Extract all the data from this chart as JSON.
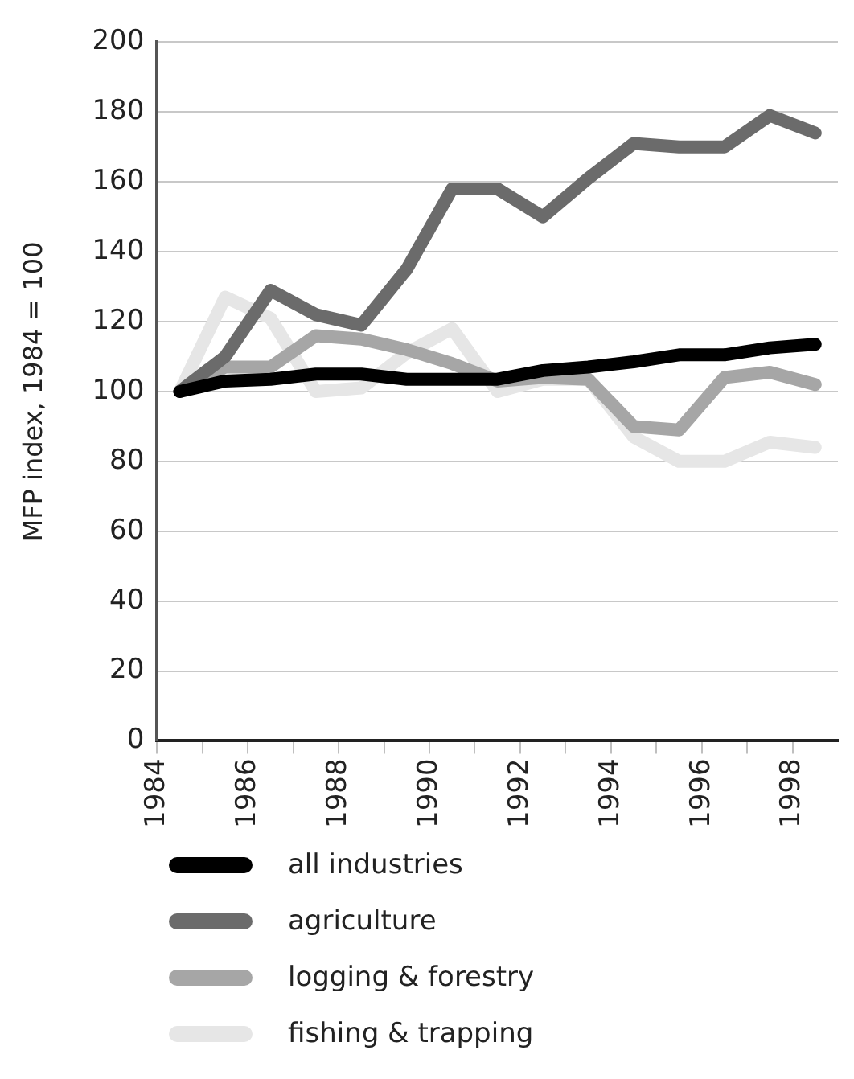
{
  "chart_data": {
    "type": "line",
    "ylabel": "MFP index, 1984 = 100",
    "x": [
      1984.5,
      1985.5,
      1986.5,
      1987.5,
      1988.5,
      1989.5,
      1990.5,
      1991.5,
      1992.5,
      1993.5,
      1994.5,
      1995.5,
      1996.5,
      1997.5,
      1998.5
    ],
    "series": [
      {
        "name": "all industries",
        "color": "#000000",
        "values": [
          100,
          103,
          103.5,
          105,
          105,
          103.5,
          103.5,
          103.5,
          106,
          107,
          108.5,
          110.5,
          110.5,
          112.5,
          113.5
        ]
      },
      {
        "name": "agriculture",
        "color": "#6b6b6b",
        "values": [
          100,
          110,
          129,
          122,
          119,
          135,
          158,
          158,
          150,
          161,
          171,
          170,
          170,
          179,
          174
        ]
      },
      {
        "name": "logging & forestry",
        "color": "#a6a6a6",
        "values": [
          100,
          107,
          107,
          116,
          115,
          112,
          108,
          103,
          104,
          103.5,
          90,
          89,
          104,
          105.5,
          102
        ]
      },
      {
        "name": "fishing & trapping",
        "color": "#e6e6e6",
        "values": [
          100,
          127,
          121,
          100,
          101,
          111,
          118,
          100,
          103.5,
          103.5,
          87,
          80,
          80,
          85.5,
          84
        ]
      }
    ],
    "xlim": [
      1984,
      1999
    ],
    "xticks": [
      1984,
      {
        "value": 1985,
        "label": null
      },
      1986,
      {
        "value": 1987,
        "label": null
      },
      1988,
      {
        "value": 1989,
        "label": null
      },
      1990,
      {
        "value": 1991,
        "label": null
      },
      1992,
      {
        "value": 1993,
        "label": null
      },
      1994,
      {
        "value": 1995,
        "label": null
      },
      1996,
      {
        "value": 1997,
        "label": null
      },
      1998
    ],
    "ylim": [
      0,
      200
    ],
    "yticks": [
      0,
      20,
      40,
      60,
      80,
      100,
      120,
      140,
      160,
      180,
      200
    ],
    "grid": "y",
    "legend": "bottom",
    "marker": "none",
    "line_style": "solid"
  }
}
